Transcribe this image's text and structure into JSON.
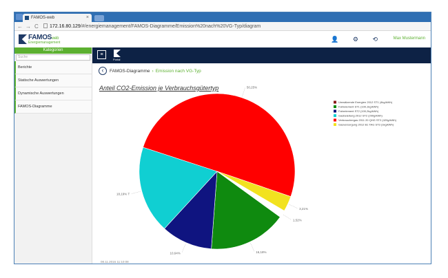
{
  "browser": {
    "tab_title": "FAMOS-web",
    "tab_close": "×",
    "nav_back": "←",
    "nav_forward": "→",
    "nav_reload": "C",
    "url_host": "172.16.80.129",
    "url_path": "/#/energiemanagement/FAMOS-Diagramme/Emission%20nach%20VG-Typ/diagram"
  },
  "app": {
    "logo_name": "FAMOS",
    "logo_suffix": "web",
    "logo_sub": "Energiemanagement",
    "header_icons": "👤 ⚙ ⟲",
    "user_name": "Max Mustermann"
  },
  "sidebar": {
    "heading": "Kategorien",
    "search_placeholder": "Suche",
    "items": [
      {
        "label": "Berichte"
      },
      {
        "label": "Statische Auswertungen"
      },
      {
        "label": "Dynamische Auswertungen"
      },
      {
        "label": "FAMOS-Diagramme"
      }
    ]
  },
  "mainbar": {
    "menu_icon": "≡",
    "home_label": "Portal"
  },
  "breadcrumb": {
    "parent": "FAMOS-Diagramme",
    "separator": "›",
    "current": "Emission nach VG-Typ"
  },
  "colors": {
    "accent_green": "#5cb030",
    "navy": "#0d2245",
    "slice_darkred": "#8b1a1a",
    "slice_green": "#0f8a0f",
    "slice_navy": "#0f1480",
    "slice_cyan": "#10cfd2",
    "slice_red": "#ff0000",
    "slice_yellow": "#f2e21f"
  },
  "chart_data": {
    "type": "pie",
    "title": "Anteil CO2-Emission je Verbrauchsgütertyp",
    "legend_position": "top-right",
    "series": [
      {
        "name": "Umwälzende Energien 2012 ST1 (4kg/kWh)",
        "value": 0.01,
        "label": "",
        "color": "#8b1a1a"
      },
      {
        "name": "Fahrelement ST1 (100,1kg/kWh)",
        "value": 16.18,
        "label": "16,18%",
        "color": "#0f8a0f"
      },
      {
        "name": "Fahrelement ST2 (100,2kg/kWh)",
        "value": 10.64,
        "label": "10,64%",
        "color": "#0f1480"
      },
      {
        "name": "Gasbeleitung 2012 ST2 (200g/kWh)",
        "value": 18.19,
        "label": "18,19% T",
        "color": "#10cfd2"
      },
      {
        "name": "Verbrauchergas 2011 20 QHG ST2 (420g/kWh)",
        "value": 50.25,
        "label": "50,25%",
        "color": "#ff0000"
      },
      {
        "name": "Gasversorgung 2012 B1 TAG ST3 (1kg/kWh)",
        "value": 3.21,
        "label": "3,21%",
        "color": "#f2e21f"
      },
      {
        "name": "",
        "value": 1.52,
        "label": "1,52%",
        "color": "#ffffff"
      }
    ]
  },
  "footer": {
    "timestamp": "08.11.2016 11:10:08"
  }
}
